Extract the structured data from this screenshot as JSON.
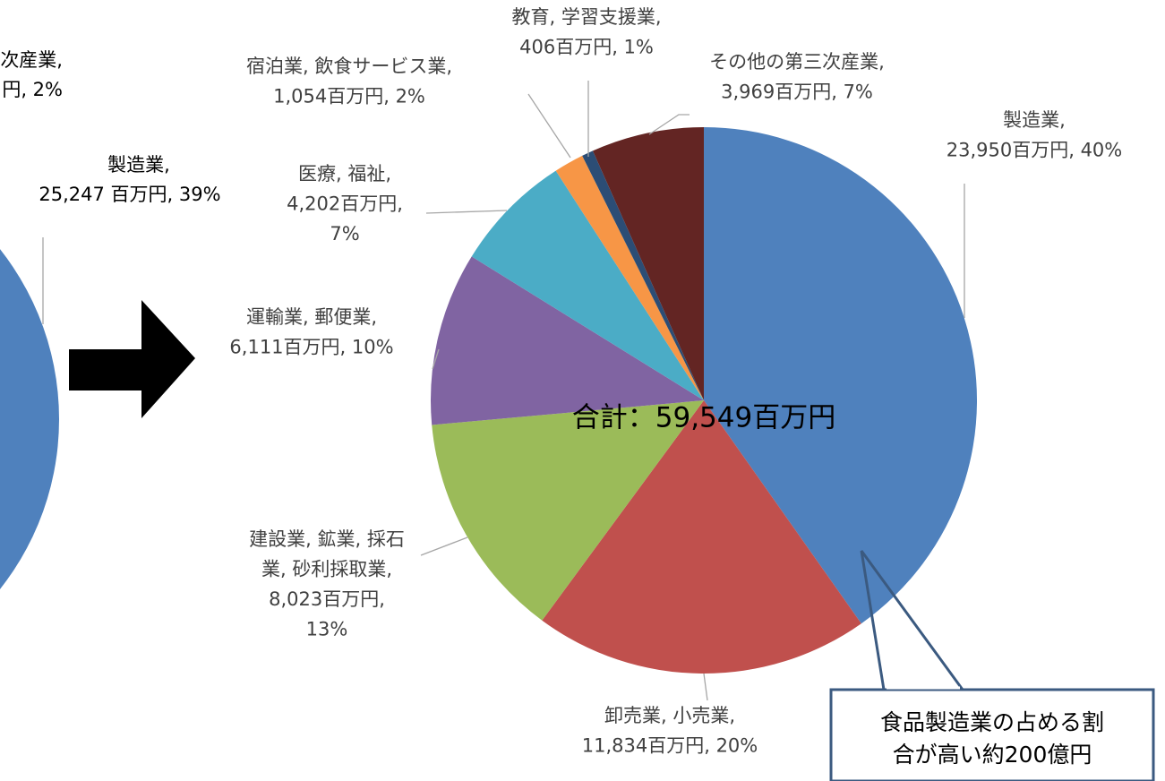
{
  "chart_data": [
    {
      "type": "pie-crop",
      "labels": [
        [
          "次産業,",
          "円, 2%"
        ],
        [
          "製造業,",
          "25,247 百万円, 39%"
        ]
      ],
      "color": "#4f81bd"
    },
    {
      "type": "pie",
      "categories": [
        [
          "製造業,"
        ],
        [
          "卸売業, 小売業,"
        ],
        [
          "建設業, 鉱業, 採石",
          "業, 砂利採取業,"
        ],
        [
          "運輸業, 郵便業,"
        ],
        [
          "医療, 福祉,"
        ],
        [
          "宿泊業, 飲食サービス業,"
        ],
        [
          "教育, 学習支援業,"
        ],
        [
          "その他の第三次産業,"
        ]
      ],
      "values": [
        23950,
        11834,
        8023,
        6111,
        4202,
        1054,
        406,
        3969
      ],
      "value_labels": [
        [
          "23,950百万円, 40%"
        ],
        [
          "11,834百万円, 20%"
        ],
        [
          "8,023百万円,",
          "13%"
        ],
        [
          "6,111百万円, 10%"
        ],
        [
          "4,202百万円,",
          "7%"
        ],
        [
          "1,054百万円, 2%"
        ],
        [
          "406百万円, 1%"
        ],
        [
          "3,969百万円, 7%"
        ]
      ],
      "colors": [
        "#4f81bd",
        "#c0504d",
        "#9bbb59",
        "#8064a2",
        "#4bacc6",
        "#f79646",
        "#2c4d75",
        "#632523"
      ],
      "center_label": "合計：59,549百万円",
      "annotation": [
        "食品製造業の占める割",
        "合が高い約200億円"
      ]
    }
  ]
}
